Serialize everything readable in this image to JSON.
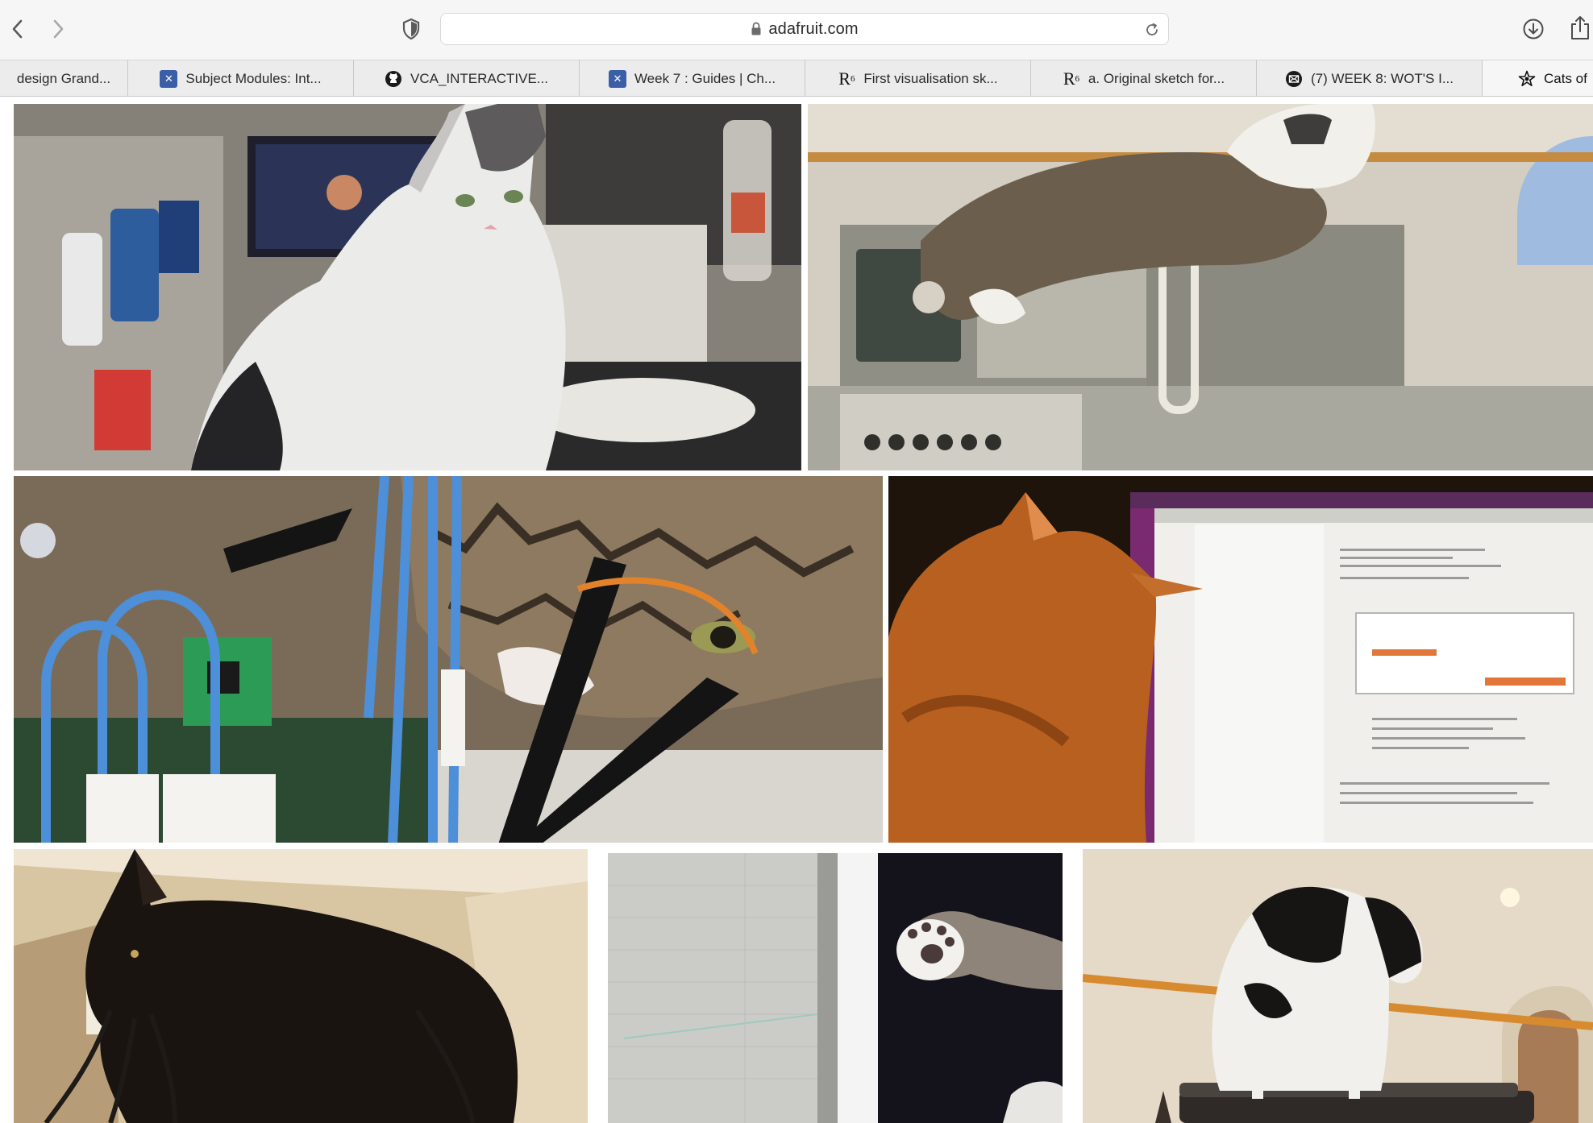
{
  "browser": {
    "address": "adafruit.com",
    "icons": {
      "back": "chevron-left-icon",
      "forward": "chevron-right-icon",
      "privacy": "shield-icon",
      "lock": "lock-icon",
      "reload": "reload-icon",
      "downloads": "download-icon",
      "share": "share-icon"
    }
  },
  "tabs": [
    {
      "label": "design Grand...",
      "favicon": ""
    },
    {
      "label": "Subject Modules: Int...",
      "favicon": "canvas-icon"
    },
    {
      "label": "VCA_INTERACTIVE...",
      "favicon": "github-icon"
    },
    {
      "label": "Week 7 : Guides | Ch...",
      "favicon": "canvas-icon"
    },
    {
      "label": "First visualisation sk...",
      "favicon": "r6-icon"
    },
    {
      "label": "a. Original sketch for...",
      "favicon": "r6-icon"
    },
    {
      "label": "(7) WEEK 8: WOT'S I...",
      "favicon": "mail-icon"
    },
    {
      "label": "Cats of",
      "favicon": "adafruit-star-icon"
    }
  ],
  "photos": [
    {
      "name": "white-cat-at-desk"
    },
    {
      "name": "cat-on-oscilloscope"
    },
    {
      "name": "tabby-cat-with-probes"
    },
    {
      "name": "orange-cat-at-monitor"
    },
    {
      "name": "black-cat-chewing-cables"
    },
    {
      "name": "white-paw-photo"
    },
    {
      "name": "black-white-cat-standing"
    }
  ]
}
